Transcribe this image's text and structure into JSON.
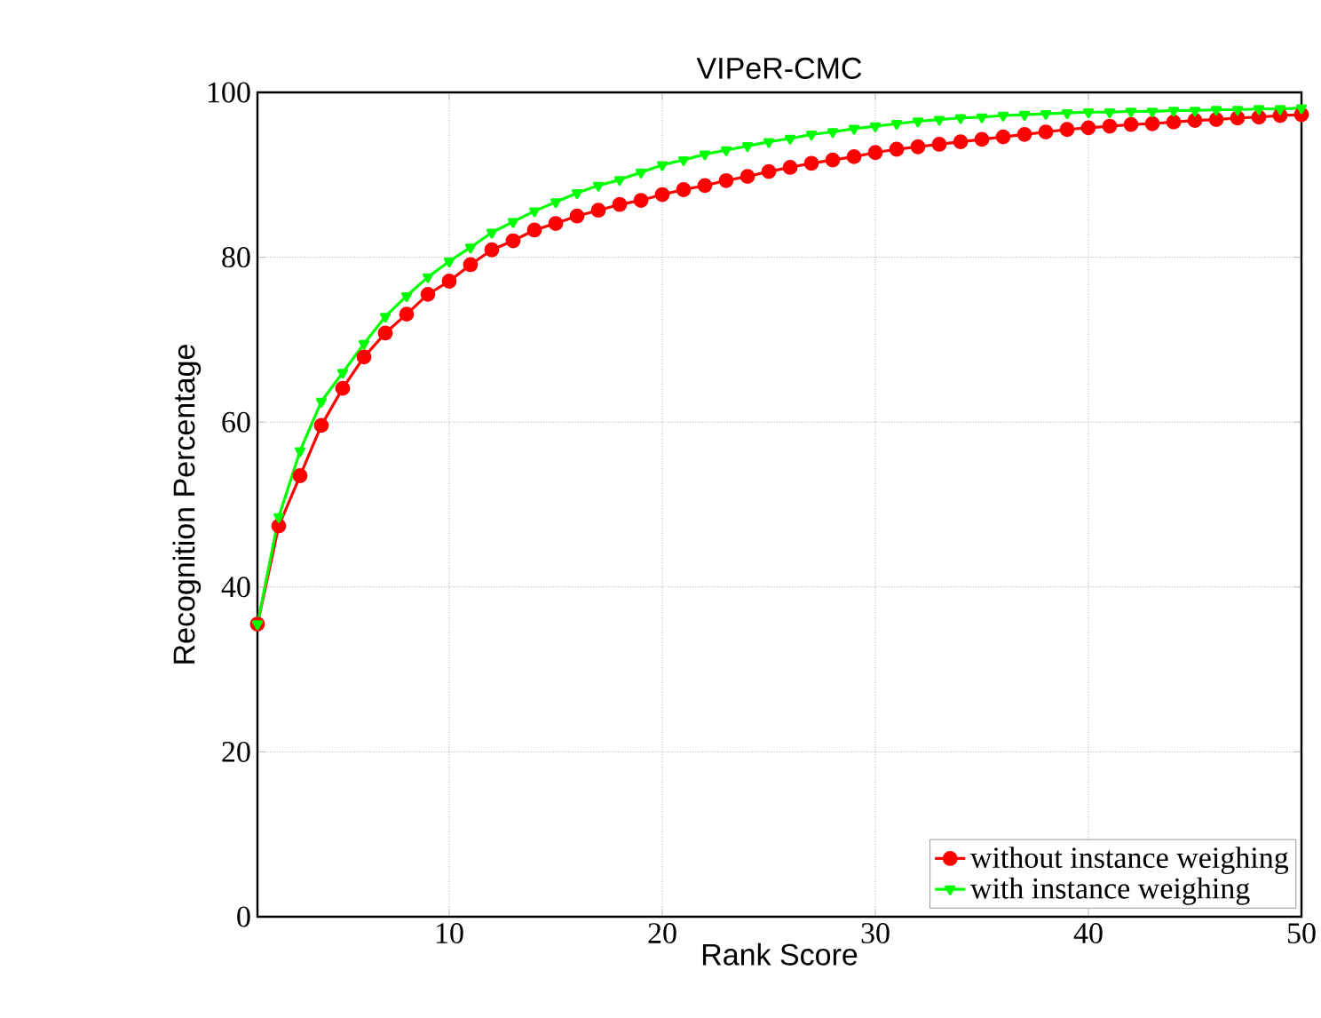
{
  "chart_data": {
    "type": "line",
    "title": "VIPeR-CMC",
    "xlabel": "Rank Score",
    "ylabel": "Recognition Percentage",
    "x": [
      1,
      2,
      3,
      4,
      5,
      6,
      7,
      8,
      9,
      10,
      11,
      12,
      13,
      14,
      15,
      16,
      17,
      18,
      19,
      20,
      21,
      22,
      23,
      24,
      25,
      26,
      27,
      28,
      29,
      30,
      31,
      32,
      33,
      34,
      35,
      36,
      37,
      38,
      39,
      40,
      41,
      42,
      43,
      44,
      45,
      46,
      47,
      48,
      49,
      50
    ],
    "xlim": [
      1,
      50
    ],
    "ylim": [
      0,
      100
    ],
    "xticks": [
      10,
      20,
      30,
      40,
      50
    ],
    "yticks": [
      0,
      20,
      40,
      60,
      80,
      100
    ],
    "grid": true,
    "legend": "bottom right",
    "series": [
      {
        "name": "without instance weighing",
        "color": "#ff0000",
        "marker": "circle",
        "values": [
          35.5,
          47.4,
          53.5,
          59.6,
          64.1,
          67.9,
          70.8,
          73.1,
          75.5,
          77.1,
          79.1,
          80.9,
          82.0,
          83.3,
          84.1,
          85.0,
          85.7,
          86.4,
          86.9,
          87.6,
          88.2,
          88.7,
          89.3,
          89.8,
          90.4,
          90.9,
          91.4,
          91.8,
          92.2,
          92.7,
          93.1,
          93.4,
          93.7,
          94.0,
          94.3,
          94.6,
          94.9,
          95.2,
          95.5,
          95.7,
          95.9,
          96.1,
          96.2,
          96.4,
          96.6,
          96.7,
          96.9,
          97.0,
          97.2,
          97.3
        ]
      },
      {
        "name": "with instance weighing",
        "color": "#00ff00",
        "marker": "triangle",
        "values": [
          35.5,
          48.5,
          56.5,
          62.5,
          66.0,
          69.5,
          72.8,
          75.3,
          77.6,
          79.5,
          81.2,
          83.0,
          84.3,
          85.6,
          86.7,
          87.8,
          88.7,
          89.4,
          90.3,
          91.2,
          91.8,
          92.5,
          93.0,
          93.5,
          94.0,
          94.4,
          94.9,
          95.2,
          95.6,
          95.9,
          96.2,
          96.5,
          96.7,
          96.9,
          97.0,
          97.2,
          97.3,
          97.4,
          97.5,
          97.6,
          97.6,
          97.7,
          97.7,
          97.8,
          97.8,
          97.9,
          97.9,
          98.0,
          98.0,
          98.1
        ]
      }
    ]
  }
}
